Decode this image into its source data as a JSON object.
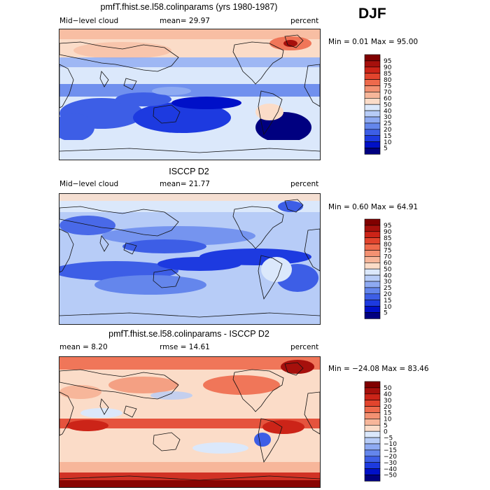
{
  "season": "DJF",
  "colors": {
    "levels_abs": [
      "#000080",
      "#0010c8",
      "#1d3ae0",
      "#3d5ee6",
      "#6486ec",
      "#8eaaf2",
      "#b7ccf7",
      "#dbe8fb",
      "#ffffff",
      "#fbdcc8",
      "#f7b69a",
      "#f39172",
      "#ee6a4c",
      "#e2442d",
      "#cc2418",
      "#a6100c",
      "#800000"
    ],
    "levels_diff": [
      "#000080",
      "#0010c8",
      "#1d3ae0",
      "#3d5ee6",
      "#6486ec",
      "#8eaaf2",
      "#b7ccf7",
      "#dbe8fb",
      "#ffffff",
      "#fbdcc8",
      "#f7b69a",
      "#f39172",
      "#ee6a4c",
      "#e2442d",
      "#cc2418",
      "#a6100c",
      "#800000"
    ],
    "coastline": "#111111"
  },
  "chart_data": [
    {
      "type": "heatmap",
      "title": "pmfT.fhist.se.l58.colinparams (yrs 1980-1987)",
      "left_label": "Mid−level cloud",
      "center_label": "mean=  29.97",
      "units": "percent",
      "minmax": "Min =    0.01 Max =   95.00",
      "levels": [
        "95",
        "90",
        "85",
        "80",
        "75",
        "70",
        "60",
        "50",
        "40",
        "30",
        "25",
        "20",
        "15",
        "10",
        "5"
      ],
      "mean": 29.97,
      "min": 0.01,
      "max": 95.0
    },
    {
      "type": "heatmap",
      "title": "ISCCP D2",
      "left_label": "Mid−level cloud",
      "center_label": "mean=  21.77",
      "units": "percent",
      "minmax": "Min =    0.60 Max =   64.91",
      "levels": [
        "95",
        "90",
        "85",
        "80",
        "75",
        "70",
        "60",
        "50",
        "40",
        "30",
        "25",
        "20",
        "15",
        "10",
        "5"
      ],
      "mean": 21.77,
      "min": 0.6,
      "max": 64.91
    },
    {
      "type": "heatmap",
      "title": "pmfT.fhist.se.l58.colinparams - ISCCP D2",
      "left_label": "mean =    8.20",
      "center_label": "rmse =   14.61",
      "units": "percent",
      "minmax": "Min = −24.08 Max =   83.46",
      "levels": [
        "50",
        "40",
        "30",
        "20",
        "15",
        "10",
        "5",
        "0",
        "−5",
        "−10",
        "−15",
        "−20",
        "−30",
        "−40",
        "−50"
      ],
      "mean": 8.2,
      "rmse": 14.61,
      "min": -24.08,
      "max": 83.46
    }
  ]
}
